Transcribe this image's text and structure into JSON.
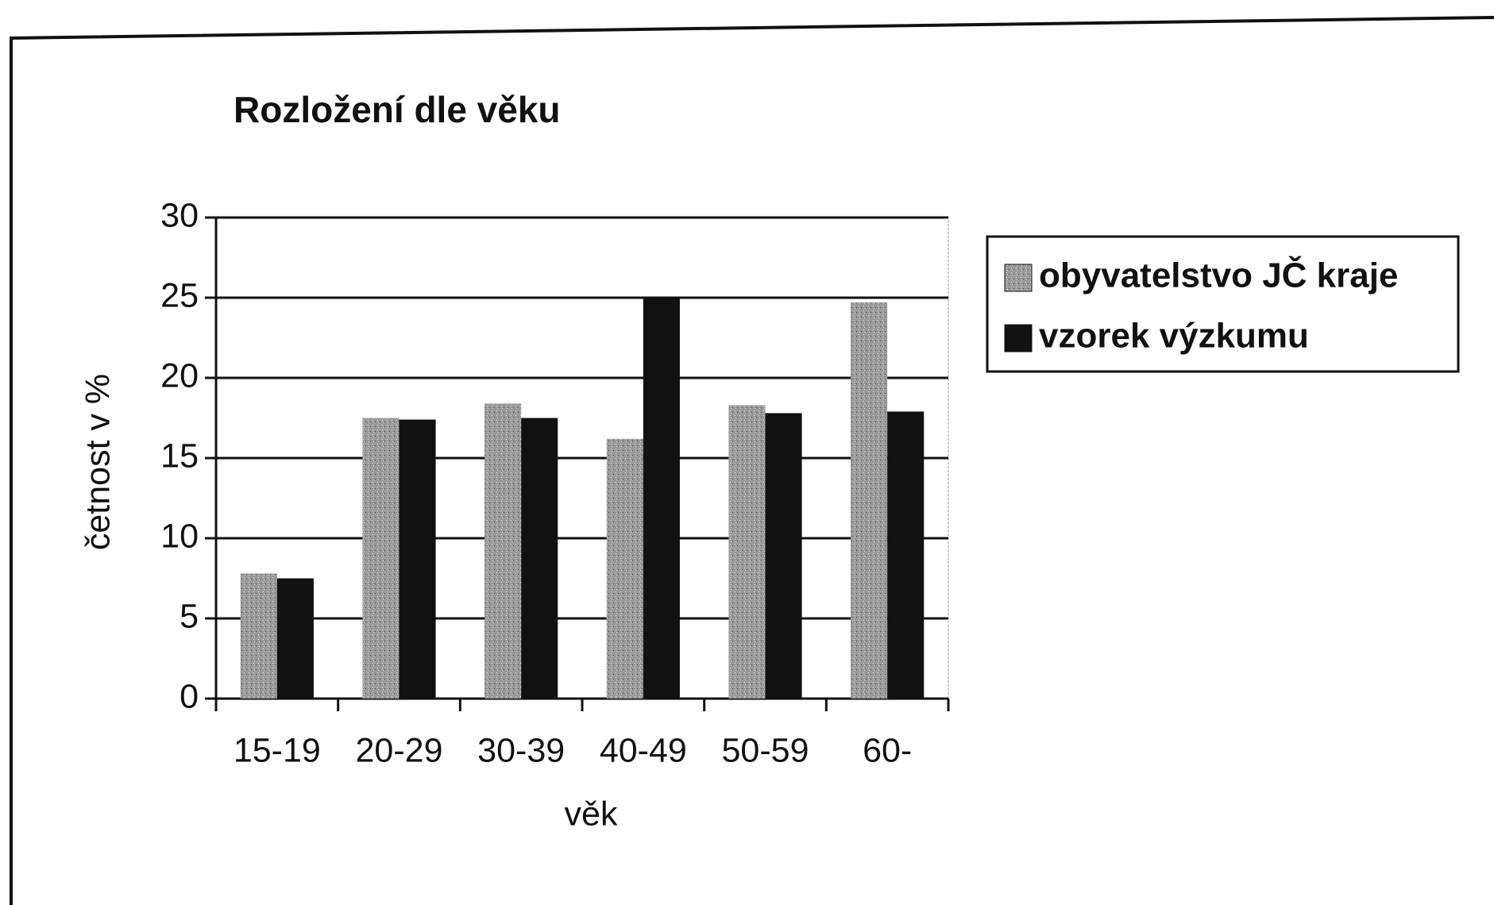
{
  "chart_data": {
    "type": "bar",
    "title": "Rozložení dle věku",
    "x_label": "věk",
    "y_label": "četnost v %",
    "categories": [
      "15-19",
      "20-29",
      "30-39",
      "40-49",
      "50-59",
      "60-"
    ],
    "series": [
      {
        "name": "obyvatelstvo JČ kraje",
        "color": "#9a9a9a",
        "values": [
          7.8,
          17.5,
          18.4,
          16.2,
          18.3,
          24.7
        ]
      },
      {
        "name": "vzorek výzkumu",
        "color": "#111111",
        "values": [
          7.5,
          17.4,
          17.5,
          25,
          17.8,
          17.9
        ]
      }
    ],
    "ylim": [
      0,
      30
    ],
    "yticks": [
      0,
      5,
      10,
      15,
      20,
      25,
      30
    ],
    "grid": true,
    "legend": "right"
  }
}
